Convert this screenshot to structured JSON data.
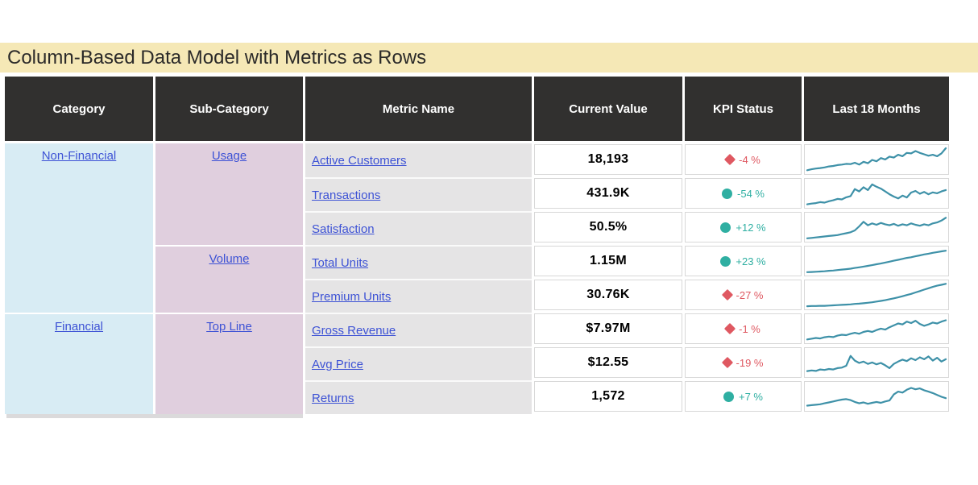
{
  "title": "Column-Based Data Model with Metrics as Rows",
  "colors": {
    "title_background": "#F5E8B6",
    "header_background": "#31302f",
    "header_text": "#ffffff",
    "category_background": "#D8ECF4",
    "subcategory_background": "#E0CFDE",
    "metric_background": "#E5E4E5",
    "link": "#3D52D5",
    "kpi_negative": "#DF5861",
    "kpi_positive": "#2FAFA2",
    "sparkline": "#3E91A8",
    "cell_border": "#D8D8D8"
  },
  "chart_data": {
    "type": "table",
    "title": "Column-Based Data Model with Metrics as Rows",
    "columns": [
      "Category",
      "Sub-Category",
      "Metric Name",
      "Current Value",
      "KPI Status",
      "Last 18 Months"
    ],
    "category_groups": [
      {
        "label": "Non-Financial",
        "row_span": 5
      },
      {
        "label": "Financial",
        "row_span": 3
      }
    ],
    "subcategory_groups": [
      {
        "label": "Usage",
        "row_span": 3
      },
      {
        "label": "Volume",
        "row_span": 2
      },
      {
        "label": "Top Line",
        "row_span": 3
      }
    ],
    "rows": [
      {
        "category": "Non-Financial",
        "sub_category": "Usage",
        "metric": "Active Customers",
        "current_value": "18,193",
        "kpi_status": "-4 %",
        "kpi_icon": "diamond",
        "kpi_sentiment": "negative",
        "sparkline": [
          0.06,
          0.1,
          0.13,
          0.15,
          0.18,
          0.22,
          0.24,
          0.28,
          0.3,
          0.33,
          0.32,
          0.38,
          0.3,
          0.42,
          0.36,
          0.5,
          0.44,
          0.58,
          0.52,
          0.64,
          0.6,
          0.72,
          0.66,
          0.8,
          0.78,
          0.88,
          0.8,
          0.74,
          0.68,
          0.72,
          0.66,
          0.78,
          1.0
        ]
      },
      {
        "category": "Non-Financial",
        "sub_category": "Usage",
        "metric": "Transactions",
        "current_value": "431.9K",
        "kpi_status": "-54 %",
        "kpi_icon": "circle",
        "kpi_sentiment": "positive",
        "sparkline": [
          0.05,
          0.08,
          0.1,
          0.14,
          0.12,
          0.18,
          0.22,
          0.28,
          0.26,
          0.35,
          0.4,
          0.7,
          0.6,
          0.78,
          0.66,
          0.9,
          0.8,
          0.72,
          0.6,
          0.48,
          0.38,
          0.3,
          0.42,
          0.34,
          0.55,
          0.62,
          0.5,
          0.58,
          0.48,
          0.56,
          0.52,
          0.6,
          0.66
        ]
      },
      {
        "category": "Non-Financial",
        "sub_category": "Usage",
        "metric": "Satisfaction",
        "current_value": "50.5%",
        "kpi_status": "+12 %",
        "kpi_icon": "circle",
        "kpi_sentiment": "positive",
        "sparkline": [
          0.04,
          0.06,
          0.08,
          0.1,
          0.12,
          0.14,
          0.16,
          0.18,
          0.22,
          0.26,
          0.3,
          0.38,
          0.55,
          0.75,
          0.6,
          0.68,
          0.62,
          0.7,
          0.64,
          0.6,
          0.66,
          0.58,
          0.64,
          0.6,
          0.68,
          0.62,
          0.58,
          0.64,
          0.6,
          0.68,
          0.72,
          0.8,
          0.92
        ]
      },
      {
        "category": "Non-Financial",
        "sub_category": "Volume",
        "metric": "Total Units",
        "current_value": "1.15M",
        "kpi_status": "+23 %",
        "kpi_icon": "circle",
        "kpi_sentiment": "positive",
        "sparkline": [
          0.04,
          0.05,
          0.06,
          0.07,
          0.08,
          0.1,
          0.11,
          0.13,
          0.15,
          0.17,
          0.19,
          0.22,
          0.25,
          0.28,
          0.31,
          0.34,
          0.38,
          0.41,
          0.45,
          0.49,
          0.53,
          0.57,
          0.61,
          0.65,
          0.68,
          0.72,
          0.76,
          0.8,
          0.83,
          0.87,
          0.9,
          0.93,
          0.96
        ]
      },
      {
        "category": "Non-Financial",
        "sub_category": "Volume",
        "metric": "Premium Units",
        "current_value": "30.76K",
        "kpi_status": "-27 %",
        "kpi_icon": "diamond",
        "kpi_sentiment": "negative",
        "sparkline": [
          0.03,
          0.04,
          0.04,
          0.05,
          0.05,
          0.06,
          0.07,
          0.08,
          0.09,
          0.1,
          0.11,
          0.13,
          0.14,
          0.16,
          0.18,
          0.2,
          0.23,
          0.26,
          0.29,
          0.33,
          0.37,
          0.41,
          0.46,
          0.51,
          0.56,
          0.62,
          0.68,
          0.74,
          0.8,
          0.86,
          0.91,
          0.95,
          0.99
        ]
      },
      {
        "category": "Financial",
        "sub_category": "Top Line",
        "metric": "Gross Revenue",
        "current_value": "$7.97M",
        "kpi_status": "-1 %",
        "kpi_icon": "diamond",
        "kpi_sentiment": "negative",
        "sparkline": [
          0.06,
          0.09,
          0.12,
          0.1,
          0.15,
          0.18,
          0.16,
          0.22,
          0.26,
          0.24,
          0.3,
          0.34,
          0.3,
          0.38,
          0.42,
          0.38,
          0.46,
          0.52,
          0.48,
          0.58,
          0.66,
          0.74,
          0.7,
          0.82,
          0.76,
          0.86,
          0.72,
          0.64,
          0.7,
          0.78,
          0.74,
          0.82,
          0.88
        ]
      },
      {
        "category": "Financial",
        "sub_category": "Top Line",
        "metric": "Avg Price",
        "current_value": "$12.55",
        "kpi_status": "-19 %",
        "kpi_icon": "diamond",
        "kpi_sentiment": "negative",
        "sparkline": [
          0.15,
          0.18,
          0.16,
          0.22,
          0.2,
          0.24,
          0.22,
          0.28,
          0.3,
          0.38,
          0.8,
          0.6,
          0.5,
          0.56,
          0.46,
          0.52,
          0.44,
          0.5,
          0.4,
          0.28,
          0.46,
          0.56,
          0.64,
          0.58,
          0.7,
          0.62,
          0.74,
          0.66,
          0.78,
          0.6,
          0.72,
          0.56,
          0.66
        ]
      },
      {
        "category": "Financial",
        "sub_category": "Top Line",
        "metric": "Returns",
        "current_value": "1,572",
        "kpi_status": "+7 %",
        "kpi_icon": "circle",
        "kpi_sentiment": "positive",
        "sparkline": [
          0.12,
          0.14,
          0.16,
          0.18,
          0.22,
          0.26,
          0.3,
          0.34,
          0.38,
          0.4,
          0.36,
          0.28,
          0.22,
          0.26,
          0.2,
          0.24,
          0.28,
          0.24,
          0.3,
          0.34,
          0.6,
          0.72,
          0.68,
          0.8,
          0.88,
          0.82,
          0.86,
          0.78,
          0.72,
          0.66,
          0.58,
          0.5,
          0.44
        ]
      }
    ]
  }
}
